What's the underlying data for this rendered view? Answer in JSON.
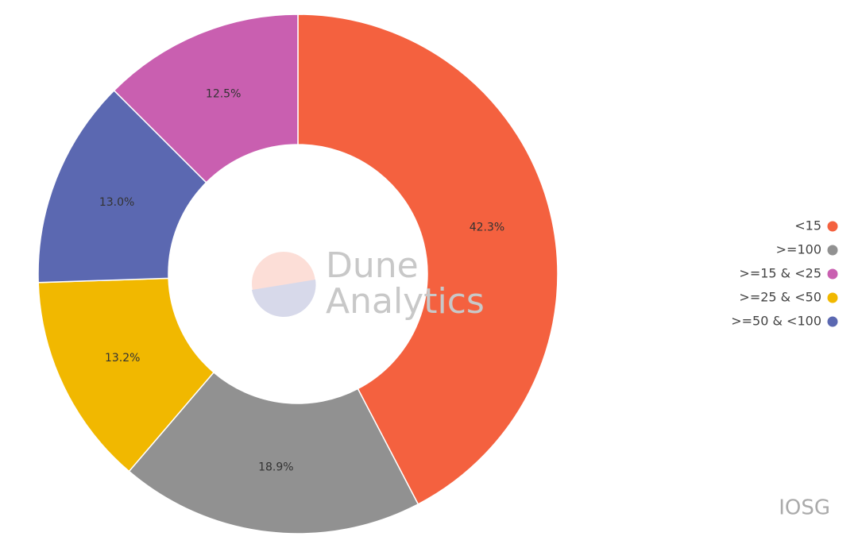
{
  "chart_data": {
    "type": "donut",
    "categories": [
      "<15",
      ">=100",
      ">=25 & <50",
      ">=50 & <100",
      ">=15 & <25"
    ],
    "values": [
      42.3,
      18.9,
      13.2,
      13.0,
      12.5
    ],
    "value_labels": [
      "42.3%",
      "18.9%",
      "13.2%",
      "13.0%",
      "12.5%"
    ],
    "colors": [
      "#f4613f",
      "#919191",
      "#f1b800",
      "#5b68b1",
      "#c95fb0"
    ],
    "legend": [
      "<15",
      ">=100",
      ">=15 & <25",
      ">=25 & <50",
      ">=50 & <100"
    ],
    "legend_position": "right",
    "watermark": [
      "Dune",
      "Analytics"
    ],
    "credit": "IOSG"
  }
}
